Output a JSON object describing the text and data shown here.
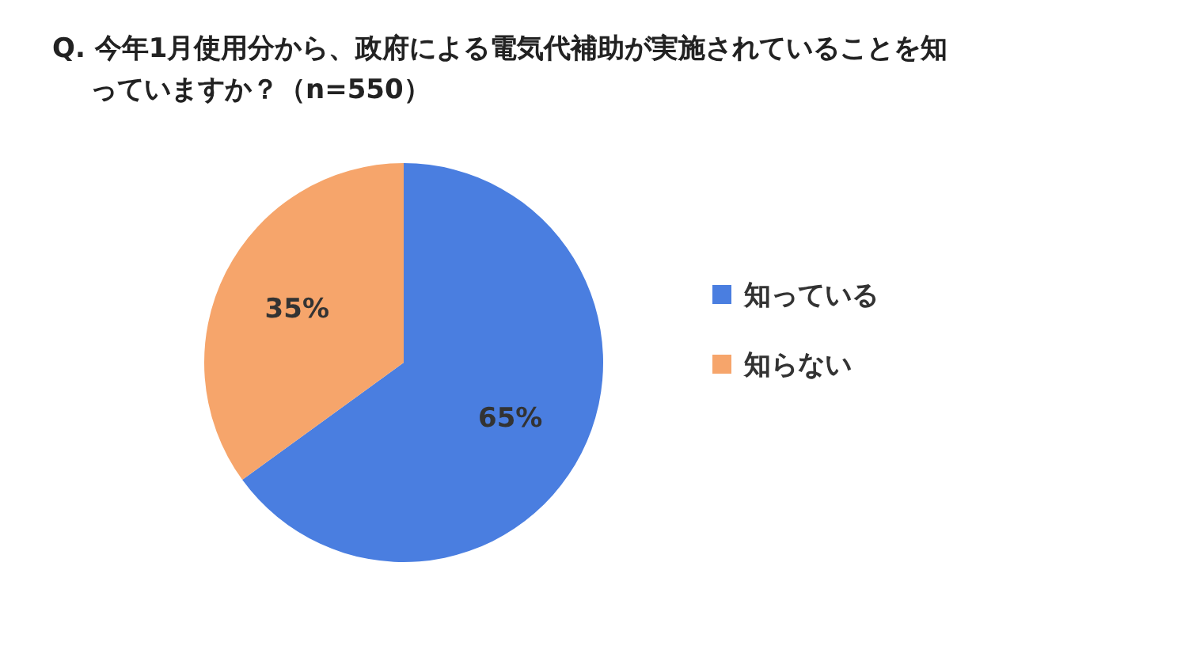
{
  "chart_data": {
    "type": "pie",
    "title": "Q. 今年1月使用分から、政府による電気代補助が実施されていることを知っていますか？（n=550）",
    "categories": [
      "知っている",
      "知らない"
    ],
    "values": [
      65,
      35
    ],
    "colors": [
      "#4a7ee0",
      "#f6a56b"
    ],
    "value_labels": [
      "65%",
      "35%"
    ],
    "legend": "right"
  }
}
